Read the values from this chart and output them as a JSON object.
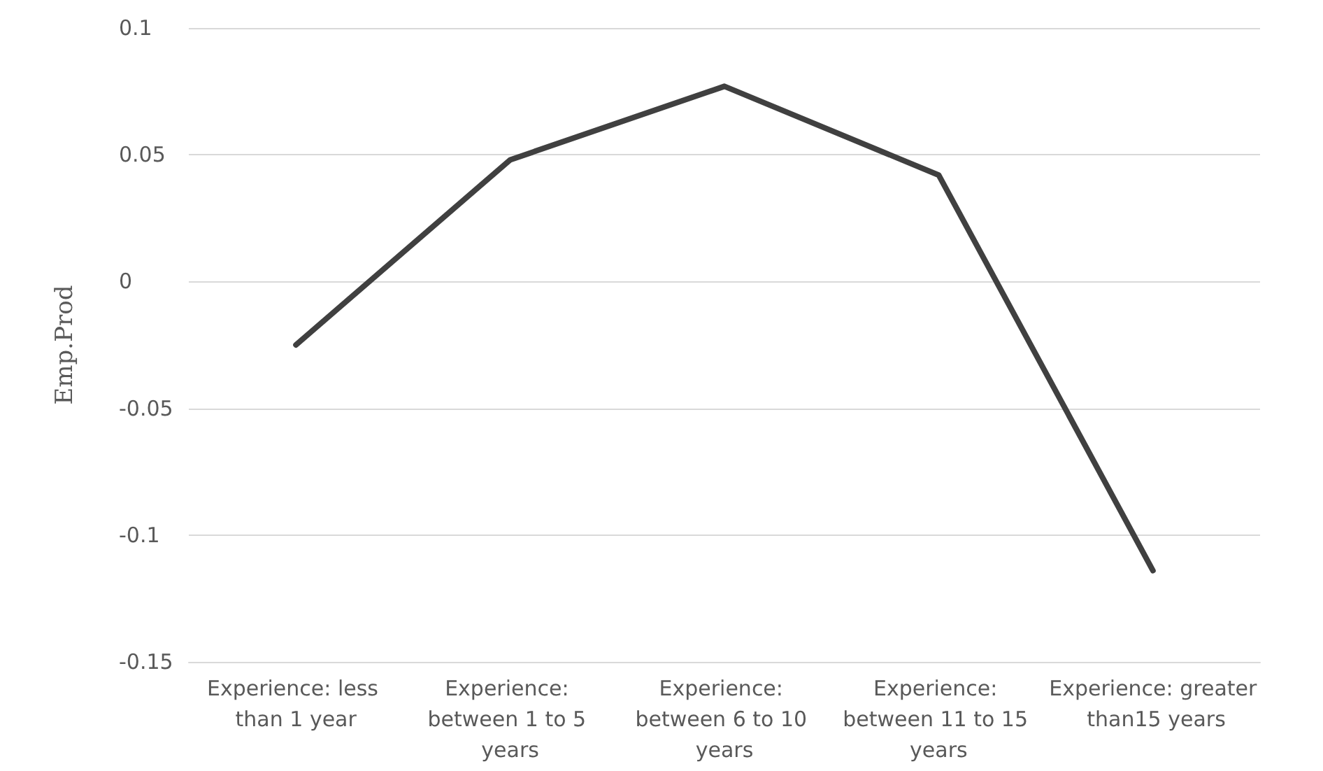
{
  "chart_data": {
    "type": "line",
    "ylabel": "Emp.Prod",
    "categories": [
      "Experience: less than 1 year",
      "Experience: between 1 to 5 years",
      "Experience: between 6 to 10 years",
      "Experience: between 11 to 15 years",
      "Experience: greater than15 years"
    ],
    "series": [
      {
        "color": "#404040",
        "values": [
          -0.025,
          0.048,
          0.077,
          0.042,
          -0.114
        ]
      }
    ],
    "ylim": [
      -0.15,
      0.1
    ],
    "yticks": [
      -0.15,
      -0.1,
      -0.05,
      0,
      0.05,
      0.1
    ],
    "grid": "y",
    "marker": "none",
    "line_style": "solid"
  }
}
